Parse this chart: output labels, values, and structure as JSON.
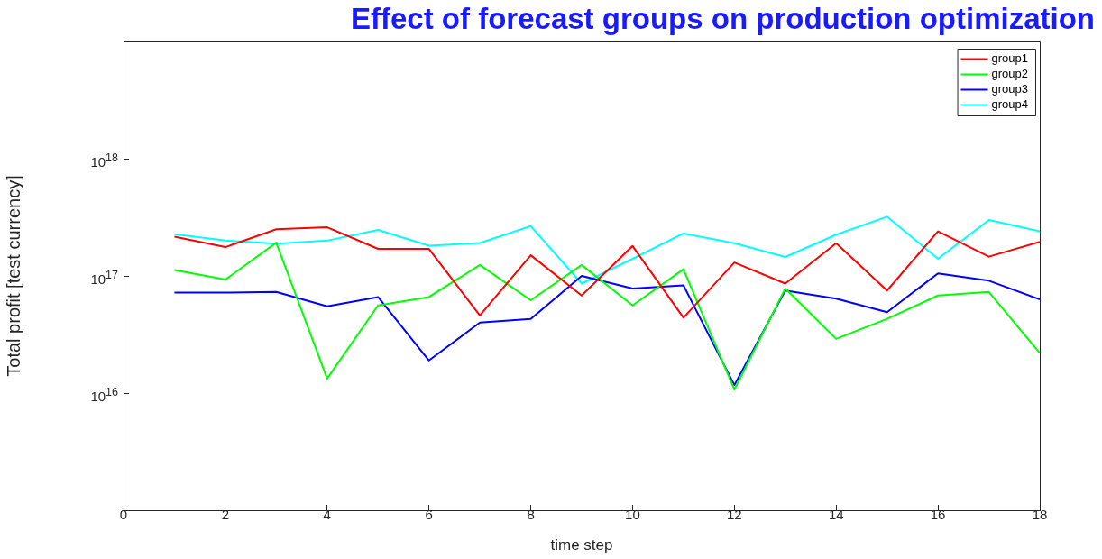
{
  "chart_data": {
    "type": "line",
    "title": "Effect of forecast groups on production optimization",
    "xlabel": "time step",
    "ylabel": "Total profit [test currency]",
    "x": [
      1,
      2,
      3,
      4,
      5,
      6,
      7,
      8,
      9,
      10,
      11,
      12,
      13,
      14,
      15,
      16,
      17,
      18
    ],
    "series": [
      {
        "name": "group1",
        "color": "#ff0000",
        "values": [
          2.16e+17,
          1.76e+17,
          2.5e+17,
          2.6e+17,
          1.7e+17,
          1.7e+17,
          4.6e+16,
          1.5e+17,
          6.8e+16,
          1.8e+17,
          4.4e+16,
          1.3e+17,
          8.6e+16,
          1.9e+17,
          7.5e+16,
          2.4e+17,
          1.46e+17,
          1.95e+17
        ]
      },
      {
        "name": "group2",
        "color": "#00ff00",
        "values": [
          1.12e+17,
          9.3e+16,
          1.92e+17,
          1.33e+16,
          5.6e+16,
          6.6e+16,
          1.24e+17,
          6.2e+16,
          1.24e+17,
          5.6e+16,
          1.14e+17,
          1.07e+16,
          7.8e+16,
          2.9e+16,
          4.3e+16,
          6.8e+16,
          7.3e+16,
          2.2e+16
        ]
      },
      {
        "name": "group3",
        "color": "#0000ff",
        "values": [
          7.2e+16,
          7.2e+16,
          7.3e+16,
          5.5e+16,
          6.6e+16,
          1.9e+16,
          4e+16,
          4.3e+16,
          1e+17,
          7.8e+16,
          8.3e+16,
          1.17e+16,
          7.5e+16,
          6.4e+16,
          4.9e+16,
          1.05e+17,
          9.1e+16,
          6.3e+16
        ]
      },
      {
        "name": "group4",
        "color": "#00ffff",
        "values": [
          2.27e+17,
          2e+17,
          1.88e+17,
          2e+17,
          2.47e+17,
          1.81e+17,
          1.91e+17,
          2.66e+17,
          8.6e+16,
          1.4e+17,
          2.3e+17,
          1.9e+17,
          1.45e+17,
          2.25e+17,
          3.2e+17,
          1.4e+17,
          3e+17,
          2.4e+17
        ]
      }
    ],
    "log": "y",
    "xlim": [
      0,
      18
    ],
    "xticks": [
      0,
      2,
      4,
      6,
      8,
      10,
      12,
      14,
      16,
      18
    ],
    "ylim": [
      1000000000000000.0,
      1e+19
    ],
    "yticks": [
      {
        "value": 1e+16,
        "label": "10$^{16}$"
      },
      {
        "value": 1e+17,
        "label": "10$^{17}$"
      },
      {
        "value": 1e+18,
        "label": "10$^{18}$"
      }
    ],
    "grid": false,
    "legend": "top right",
    "marker": "none",
    "line_style": "solid"
  }
}
